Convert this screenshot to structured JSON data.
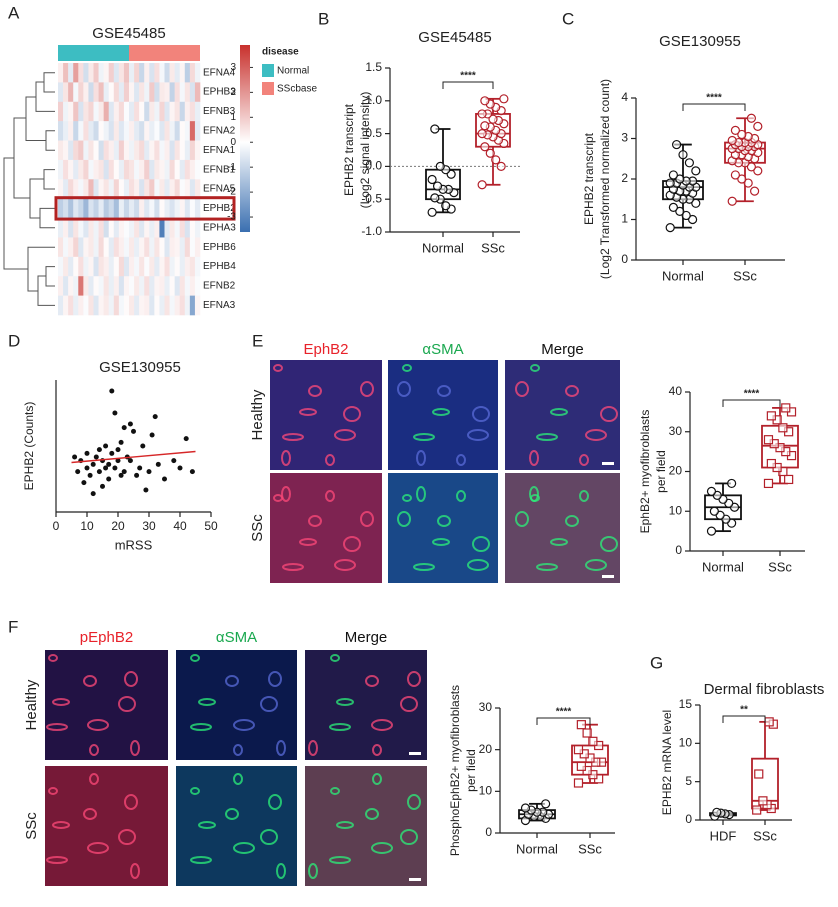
{
  "chart_data": [
    {
      "type": "heatmap",
      "panel": "A",
      "title": "GSE45485",
      "row_labels": [
        "EFNA4",
        "EPHB3",
        "EFNB3",
        "EFNA2",
        "EFNA1",
        "EFNB1",
        "EFNA5",
        "EPHB2",
        "EPHA3",
        "EPHB6",
        "EPHB4",
        "EFNB2",
        "EFNA3"
      ],
      "values": [
        [
          0.3,
          1.2,
          -0.5,
          1.8,
          0.6,
          -0.8,
          0.4,
          1.0,
          -0.3,
          0.2,
          0.9,
          -0.6,
          0.5,
          1.1,
          -0.4,
          0.8,
          -1.0,
          0.3,
          -0.7,
          0.6,
          -0.2,
          -0.9,
          0.4,
          -0.5,
          0.2,
          -1.2,
          0.7,
          -0.3
        ],
        [
          -0.6,
          0.5,
          1.4,
          -0.2,
          0.8,
          0.3,
          -0.9,
          0.6,
          1.2,
          -0.4,
          0.1,
          0.7,
          -0.5,
          0.9,
          0.2,
          -0.6,
          0.5,
          -0.3,
          1.0,
          -0.8,
          0.4,
          0.3,
          -1.1,
          0.6,
          -0.2,
          0.5,
          -0.7,
          1.3
        ],
        [
          0.9,
          -0.3,
          0.2,
          1.1,
          -0.7,
          0.5,
          0.8,
          -0.2,
          0.4,
          1.5,
          -0.6,
          0.3,
          0.7,
          -0.1,
          -0.5,
          0.6,
          0.1,
          -0.9,
          0.4,
          -0.3,
          0.8,
          -0.6,
          0.2,
          0.5,
          -1.0,
          0.3,
          0.6,
          -0.4
        ],
        [
          -0.8,
          -0.4,
          0.3,
          -1.0,
          -0.2,
          0.6,
          -0.5,
          -0.9,
          0.1,
          -0.3,
          -0.7,
          0.4,
          -0.6,
          -0.2,
          0.3,
          -0.5,
          -0.8,
          0.2,
          -0.4,
          -0.1,
          -0.6,
          0.5,
          -0.3,
          -0.9,
          0.1,
          -0.2,
          2.8,
          -0.5
        ],
        [
          0.4,
          0.2,
          -0.6,
          0.7,
          1.0,
          -0.3,
          0.5,
          0.1,
          -0.8,
          0.6,
          0.3,
          -0.4,
          0.9,
          0.2,
          -0.3,
          0.4,
          0.7,
          -0.5,
          0.2,
          0.6,
          -0.2,
          0.3,
          -0.7,
          0.5,
          0.1,
          -0.4,
          0.8,
          0.2
        ],
        [
          -0.3,
          0.6,
          0.2,
          -0.5,
          0.4,
          0.8,
          -0.2,
          0.3,
          0.5,
          -0.7,
          0.6,
          0.1,
          -0.4,
          0.7,
          0.5,
          -0.2,
          0.3,
          0.9,
          -0.6,
          0.4,
          0.2,
          -0.3,
          0.7,
          0.1,
          -0.5,
          0.6,
          0.3,
          -0.1
        ],
        [
          0.2,
          -0.5,
          0.7,
          0.3,
          -0.2,
          0.4,
          1.3,
          -0.6,
          0.2,
          0.5,
          -0.3,
          0.8,
          0.1,
          -0.4,
          0.6,
          0.3,
          -0.7,
          0.5,
          1.0,
          -0.2,
          0.4,
          -0.5,
          0.3,
          0.7,
          -0.1,
          0.2,
          -0.6,
          0.4
        ],
        [
          -1.2,
          -0.8,
          -1.5,
          -0.6,
          -1.0,
          -1.8,
          -0.7,
          -1.1,
          -0.5,
          -1.3,
          -0.9,
          -1.6,
          -0.4,
          -1.0,
          -0.5,
          -0.9,
          0.3,
          -0.6,
          -0.2,
          -0.8,
          0.1,
          -0.4,
          -0.7,
          -0.3,
          0.2,
          -0.6,
          -0.1,
          -0.5
        ],
        [
          -0.4,
          0.3,
          -0.7,
          0.5,
          -0.2,
          -0.6,
          0.4,
          -0.3,
          0.6,
          -0.8,
          0.1,
          -0.5,
          0.2,
          -0.1,
          -0.3,
          0.5,
          -0.6,
          0.2,
          -0.4,
          0.3,
          -3.2,
          -0.5,
          0.4,
          -0.2,
          0.6,
          -0.7,
          0.1,
          -0.3
        ],
        [
          0.5,
          -0.2,
          0.3,
          0.8,
          -0.6,
          0.2,
          0.4,
          -0.3,
          0.7,
          0.1,
          -0.5,
          0.6,
          0.3,
          -0.2,
          0.4,
          -0.4,
          0.2,
          0.6,
          -0.3,
          0.5,
          0.1,
          -0.6,
          0.3,
          0.2,
          -0.4,
          0.7,
          -0.1,
          0.3
        ],
        [
          -0.2,
          0.4,
          -0.5,
          0.1,
          0.6,
          -0.3,
          0.2,
          -0.7,
          0.5,
          0.3,
          -0.4,
          0.1,
          0.7,
          -0.6,
          0.3,
          -0.2,
          0.5,
          -0.1,
          0.4,
          -0.5,
          0.2,
          0.6,
          -0.3,
          0.1,
          -0.4,
          0.3,
          0.5,
          -0.2
        ],
        [
          0.3,
          -0.6,
          0.2,
          -0.3,
          2.6,
          0.4,
          -0.5,
          0.1,
          -0.2,
          0.5,
          -0.4,
          0.3,
          -0.7,
          0.2,
          -0.1,
          0.4,
          -0.3,
          0.6,
          -0.5,
          0.2,
          0.3,
          -0.4,
          0.1,
          -0.6,
          0.5,
          -0.2,
          0.3,
          -0.1
        ],
        [
          -0.5,
          0.2,
          0.6,
          -0.4,
          0.3,
          -0.1,
          0.5,
          -0.6,
          0.2,
          0.4,
          -0.3,
          0.7,
          -0.2,
          0.1,
          0.4,
          -0.5,
          0.2,
          0.3,
          -0.6,
          0.1,
          -0.4,
          0.5,
          -0.2,
          0.3,
          0.6,
          -0.3,
          -2.2,
          0.2
        ]
      ],
      "groups": [
        {
          "name": "Normal",
          "color": "#3dbdc2",
          "count": 14
        },
        {
          "name": "SScbase",
          "color": "#f2837b",
          "count": 14
        }
      ],
      "legend_title": "disease",
      "colormap": [
        "#3a6fb0",
        "#ffffff",
        "#c8312d"
      ],
      "clim": [
        -3.6,
        3.9
      ],
      "colorbar_ticks": [
        3,
        2,
        1,
        0,
        -1,
        -2,
        -3
      ],
      "highlight_row": 7,
      "highlight_color": "#b22222"
    },
    {
      "type": "box",
      "panel": "B",
      "title": "GSE45485",
      "ylabel": [
        "EPHB2 transcript",
        "(Log2 signal intensity)"
      ],
      "categories": [
        "Normal",
        "SSc"
      ],
      "ylim": [
        -1,
        1.5
      ],
      "yticks": [
        {
          "value": -1,
          "label": "-1.0"
        },
        {
          "value": -0.5,
          "label": "-0.5"
        },
        {
          "value": 0,
          "label": "0.0"
        },
        {
          "value": 0.5,
          "label": "0.5"
        },
        {
          "value": 1,
          "label": "1.0"
        },
        {
          "value": 1.5,
          "label": "1.5"
        }
      ],
      "refline": 0,
      "significance": "****",
      "groups": [
        {
          "color": "#111111",
          "marker": "circle",
          "min": -0.7,
          "q1": -0.5,
          "median": -0.35,
          "q3": -0.05,
          "max": 0.57,
          "points": [
            -0.7,
            -0.65,
            -0.6,
            -0.5,
            -0.48,
            -0.4,
            -0.35,
            -0.35,
            -0.3,
            -0.2,
            -0.12,
            -0.05,
            0.0,
            0.57
          ]
        },
        {
          "color": "#b3202a",
          "marker": "circle",
          "min": -0.28,
          "q1": 0.3,
          "median": 0.5,
          "q3": 0.8,
          "max": 1.03,
          "points": [
            -0.28,
            0.0,
            0.1,
            0.2,
            0.3,
            0.35,
            0.4,
            0.45,
            0.48,
            0.5,
            0.5,
            0.55,
            0.6,
            0.62,
            0.65,
            0.7,
            0.72,
            0.8,
            0.8,
            0.85,
            0.9,
            0.95,
            1.0,
            1.03
          ]
        }
      ]
    },
    {
      "type": "box",
      "panel": "C",
      "title": "GSE130955",
      "ylabel": [
        "EPHB2 transcript",
        "(Log2 Transformed normalized count)"
      ],
      "categories": [
        "Normal",
        "SSc"
      ],
      "ylim": [
        0,
        4
      ],
      "yticks": [
        0,
        1,
        2,
        3,
        4
      ],
      "significance": "****",
      "groups": [
        {
          "color": "#111111",
          "marker": "circle",
          "min": 0.8,
          "q1": 1.5,
          "median": 1.8,
          "q3": 1.95,
          "max": 2.85,
          "points": [
            0.8,
            1.0,
            1.1,
            1.2,
            1.3,
            1.4,
            1.5,
            1.5,
            1.55,
            1.6,
            1.65,
            1.7,
            1.7,
            1.75,
            1.8,
            1.8,
            1.85,
            1.9,
            1.9,
            1.95,
            1.95,
            2.0,
            2.1,
            2.2,
            2.4,
            2.6,
            2.85
          ]
        },
        {
          "color": "#b3202a",
          "marker": "circle",
          "min": 1.45,
          "q1": 2.4,
          "median": 2.75,
          "q3": 2.9,
          "max": 3.5,
          "points": [
            1.45,
            1.7,
            1.9,
            2.0,
            2.1,
            2.2,
            2.3,
            2.4,
            2.4,
            2.45,
            2.5,
            2.55,
            2.6,
            2.6,
            2.65,
            2.7,
            2.7,
            2.75,
            2.75,
            2.8,
            2.8,
            2.8,
            2.85,
            2.85,
            2.9,
            2.9,
            2.9,
            2.95,
            3.0,
            3.05,
            3.1,
            3.2,
            3.3,
            3.5
          ]
        }
      ]
    },
    {
      "type": "scatter",
      "panel": "D",
      "title": "GSE130955",
      "xlabel": "mRSS",
      "ylabel": [
        "EPHB2 (Counts)"
      ],
      "xlim": [
        0,
        50
      ],
      "xticks": [
        0,
        10,
        20,
        30,
        40,
        50
      ],
      "ylim": [
        0,
        36
      ],
      "color": "#111111",
      "x": [
        6,
        7,
        8,
        9,
        10,
        10,
        11,
        12,
        12,
        13,
        14,
        14,
        15,
        15,
        16,
        16,
        17,
        17,
        18,
        18,
        19,
        19,
        20,
        20,
        21,
        21,
        22,
        22,
        23,
        24,
        24,
        25,
        26,
        27,
        28,
        29,
        30,
        31,
        32,
        33,
        35,
        38,
        40,
        42,
        44
      ],
      "y": [
        15,
        11,
        14,
        8,
        12,
        16,
        10,
        13,
        5,
        15,
        11,
        17,
        7,
        14,
        12,
        18,
        13,
        9,
        16,
        33,
        12,
        27,
        14,
        17,
        19,
        10,
        11,
        23,
        15,
        14,
        24,
        22,
        10,
        12,
        18,
        6,
        11,
        21,
        26,
        13,
        9,
        14,
        12,
        20,
        11
      ],
      "trend": {
        "color": "#d62728",
        "x": [
          5,
          45
        ],
        "y": [
          13.5,
          16.5
        ]
      }
    },
    {
      "type": "box",
      "panel": "E",
      "ylabel": [
        "EphB2+ myofibroblasts",
        "per field"
      ],
      "categories": [
        "Normal",
        "SSc"
      ],
      "ylim": [
        0,
        40
      ],
      "yticks": [
        0,
        10,
        20,
        30,
        40
      ],
      "significance": "****",
      "groups": [
        {
          "color": "#111111",
          "marker": "circle",
          "min": 5,
          "q1": 8,
          "median": 11,
          "q3": 14,
          "max": 17,
          "points": [
            5,
            7,
            8,
            9,
            10,
            11,
            12,
            13,
            14,
            15,
            17
          ]
        },
        {
          "color": "#b3202a",
          "marker": "square",
          "min": 17,
          "q1": 21,
          "median": 26.5,
          "q3": 31.5,
          "max": 36,
          "points": [
            17,
            18,
            20,
            21,
            22,
            24,
            25,
            26,
            27,
            28,
            30,
            31,
            33,
            34,
            35,
            36
          ]
        }
      ]
    },
    {
      "type": "box",
      "panel": "F",
      "ylabel": [
        "PhosphoEphB2+ myofibroblasts",
        "per field"
      ],
      "categories": [
        "Normal",
        "SSc"
      ],
      "ylim": [
        0,
        30
      ],
      "yticks": [
        0,
        10,
        20,
        30
      ],
      "significance": "****",
      "groups": [
        {
          "color": "#111111",
          "marker": "circle",
          "min": 3,
          "q1": 3.5,
          "median": 4.5,
          "q3": 5.5,
          "max": 7,
          "points": [
            3,
            3.5,
            4,
            4,
            4.5,
            4.5,
            5,
            5,
            5.5,
            6,
            7
          ]
        },
        {
          "color": "#b3202a",
          "marker": "square",
          "min": 12,
          "q1": 14,
          "median": 17,
          "q3": 21,
          "max": 26,
          "points": [
            12,
            13,
            14,
            15,
            16,
            17,
            17,
            18,
            19,
            20,
            21,
            22,
            24,
            26
          ]
        }
      ]
    },
    {
      "type": "box",
      "panel": "G",
      "title": "Dermal fibroblasts",
      "ylabel": [
        "EPHB2 mRNA level"
      ],
      "categories": [
        "HDF",
        "SSc"
      ],
      "ylim": [
        0,
        15
      ],
      "yticks": [
        0,
        5,
        10,
        15
      ],
      "significance": "**",
      "groups": [
        {
          "color": "#111111",
          "marker": "circle",
          "min": 0.5,
          "q1": 0.6,
          "median": 0.8,
          "q3": 0.9,
          "max": 1.0,
          "points": [
            0.5,
            0.7,
            0.8,
            0.9,
            1.0
          ]
        },
        {
          "color": "#b3202a",
          "marker": "square",
          "min": 1.3,
          "q1": 1.5,
          "median": 2.5,
          "q3": 8,
          "max": 12.8,
          "points": [
            1.3,
            1.5,
            2.0,
            2.5,
            6.0,
            12.5,
            12.8
          ]
        }
      ]
    }
  ],
  "image_panels": [
    {
      "columns": [
        "EphB2",
        "αSMA",
        "Merge"
      ],
      "column_colors": [
        "#e8222a",
        "#1aa84f",
        "#111111"
      ],
      "rows": [
        "Healthy",
        "SSc"
      ]
    },
    {
      "columns": [
        "pEphB2",
        "αSMA",
        "Merge"
      ],
      "column_colors": [
        "#e8222a",
        "#1aa84f",
        "#111111"
      ],
      "rows": [
        "Healthy",
        "SSc"
      ]
    }
  ]
}
